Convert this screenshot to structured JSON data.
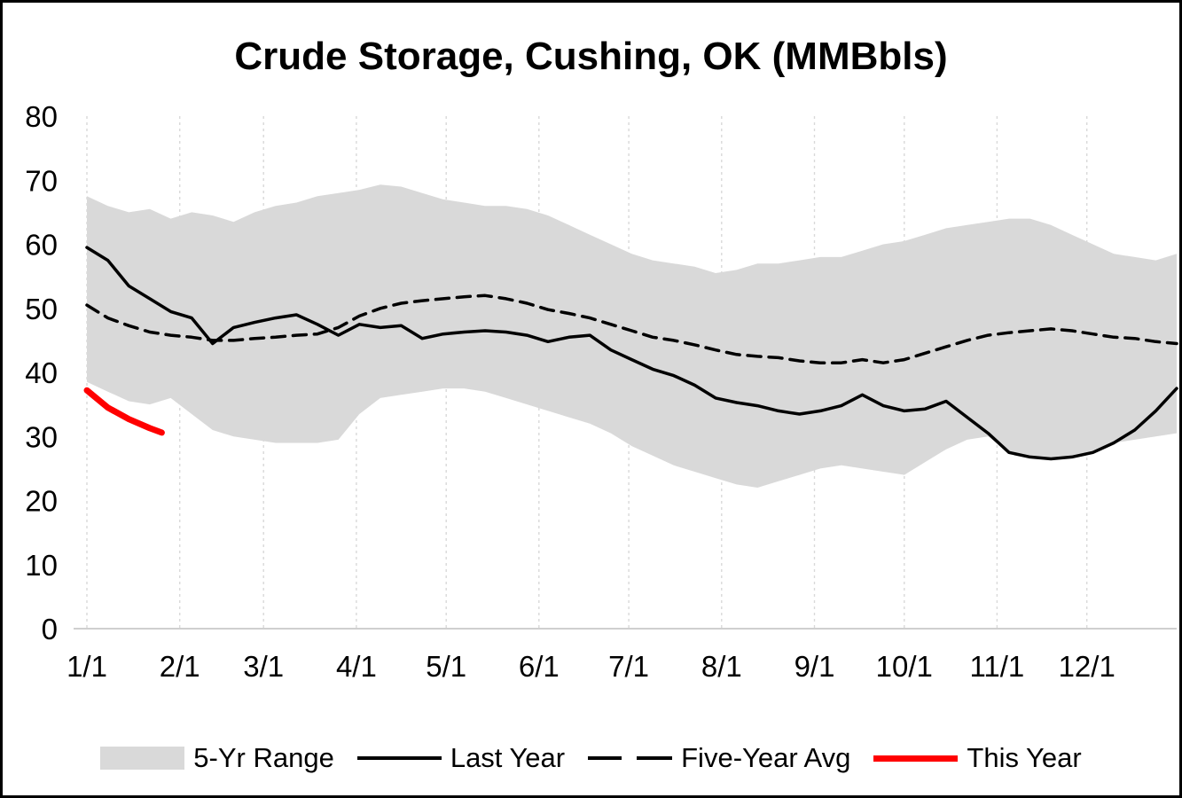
{
  "page": {
    "background": "#ffffff",
    "frame_border": "#000000"
  },
  "chart": {
    "title": "Crude Storage, Cushing, OK (MMBbls)",
    "colors": {
      "range_fill": "#d9d9d9",
      "line": "#000000",
      "this_year": "#ff0000",
      "gridline": "#d9d9d9",
      "axis_line": "#bfbfbf"
    },
    "y_axis": {
      "min": 0,
      "max": 80,
      "step": 10,
      "ticks": [
        0,
        10,
        20,
        30,
        40,
        50,
        60,
        70,
        80
      ]
    },
    "x_axis": {
      "tick_labels": [
        "1/1",
        "2/1",
        "3/1",
        "4/1",
        "5/1",
        "6/1",
        "7/1",
        "8/1",
        "9/1",
        "10/1",
        "11/1",
        "12/1"
      ],
      "tick_days": [
        1,
        32,
        60,
        91,
        121,
        152,
        182,
        213,
        244,
        274,
        305,
        335
      ]
    },
    "legend": [
      {
        "label": "5-Yr Range",
        "swatch": "gray-area"
      },
      {
        "label": "Last Year",
        "swatch": "solid-black-line"
      },
      {
        "label": "Five-Year Avg",
        "swatch": "dashed-black-line"
      },
      {
        "label": "This Year",
        "swatch": "thick-red-line"
      }
    ]
  },
  "chart_data": {
    "type": "line",
    "title": "Crude Storage, Cushing, OK (MMBbls)",
    "xlabel": "",
    "ylabel": "",
    "ylim": [
      0,
      80
    ],
    "x_unit": "day-of-year (weekly points)",
    "x_days": [
      1,
      8,
      15,
      22,
      29,
      36,
      43,
      50,
      57,
      64,
      71,
      78,
      85,
      92,
      99,
      106,
      113,
      120,
      127,
      134,
      141,
      148,
      155,
      162,
      169,
      176,
      183,
      190,
      197,
      204,
      211,
      218,
      225,
      232,
      239,
      246,
      253,
      260,
      267,
      274,
      281,
      288,
      295,
      302,
      309,
      316,
      323,
      330,
      337,
      344,
      351,
      358,
      365
    ],
    "series": [
      {
        "name": "5-Yr Range",
        "kind": "band",
        "fill": "#d9d9d9",
        "upper": [
          67.5,
          66,
          65,
          65.5,
          64,
          65,
          64.5,
          63.5,
          65,
          66,
          66.5,
          67.5,
          68,
          68.5,
          69.3,
          69,
          68,
          67,
          66.5,
          66,
          66,
          65.5,
          64.5,
          63,
          61.5,
          60,
          58.5,
          57.5,
          57,
          56.5,
          55.5,
          56,
          57,
          57,
          57.5,
          58,
          58,
          59,
          60,
          60.5,
          61.5,
          62.5,
          63,
          63.5,
          64,
          64,
          63,
          61.5,
          60,
          58.5,
          58,
          57.5,
          58.5
        ],
        "lower": [
          38.5,
          37,
          35.5,
          35,
          36,
          33.5,
          31,
          30,
          29.5,
          29,
          29,
          29,
          29.5,
          33.5,
          36,
          36.5,
          37,
          37.5,
          37.5,
          37,
          36,
          35,
          34,
          33,
          32,
          30.5,
          28.5,
          27,
          25.5,
          24.5,
          23.5,
          22.5,
          22,
          23,
          24,
          25,
          25.5,
          25,
          24.5,
          24,
          26,
          28,
          29.5,
          30,
          27.5,
          26.8,
          26.5,
          26.8,
          27.5,
          29,
          29.5,
          30,
          30.5
        ]
      },
      {
        "name": "Last Year",
        "kind": "line",
        "style": "solid",
        "color": "#000000",
        "values": [
          59.5,
          57.5,
          53.5,
          51.5,
          49.5,
          48.5,
          44.5,
          47,
          47.8,
          48.5,
          49,
          47.5,
          45.8,
          47.5,
          47,
          47.3,
          45.3,
          46,
          46.3,
          46.5,
          46.3,
          45.8,
          44.8,
          45.5,
          45.8,
          43.5,
          42,
          40.5,
          39.5,
          38,
          36,
          35.3,
          34.8,
          34,
          33.5,
          34,
          34.8,
          36.5,
          34.8,
          34,
          34.3,
          35.5,
          33,
          30.5,
          27.5,
          26.8,
          26.5,
          26.8,
          27.5,
          29,
          31,
          34,
          37.5
        ]
      },
      {
        "name": "Five-Year Avg",
        "kind": "line",
        "style": "dashed",
        "color": "#000000",
        "values": [
          50.5,
          48.5,
          47.3,
          46.3,
          45.8,
          45.5,
          45,
          45,
          45.3,
          45.5,
          45.8,
          46,
          47,
          48.8,
          50,
          50.8,
          51.2,
          51.5,
          51.8,
          52,
          51.5,
          50.8,
          49.8,
          49.2,
          48.5,
          47.5,
          46.5,
          45.5,
          45,
          44.3,
          43.5,
          42.8,
          42.5,
          42.3,
          41.8,
          41.5,
          41.5,
          42,
          41.5,
          42,
          43,
          44,
          45,
          45.8,
          46.2,
          46.5,
          46.8,
          46.5,
          46,
          45.5,
          45.3,
          44.8,
          44.5
        ],
        "legend_position": "bottom"
      },
      {
        "name": "This Year",
        "kind": "line",
        "style": "solid-thick",
        "color": "#ff0000",
        "x_days": [
          1,
          8,
          15,
          22,
          26
        ],
        "values": [
          37.2,
          34.5,
          32.7,
          31.3,
          30.6
        ]
      }
    ]
  }
}
